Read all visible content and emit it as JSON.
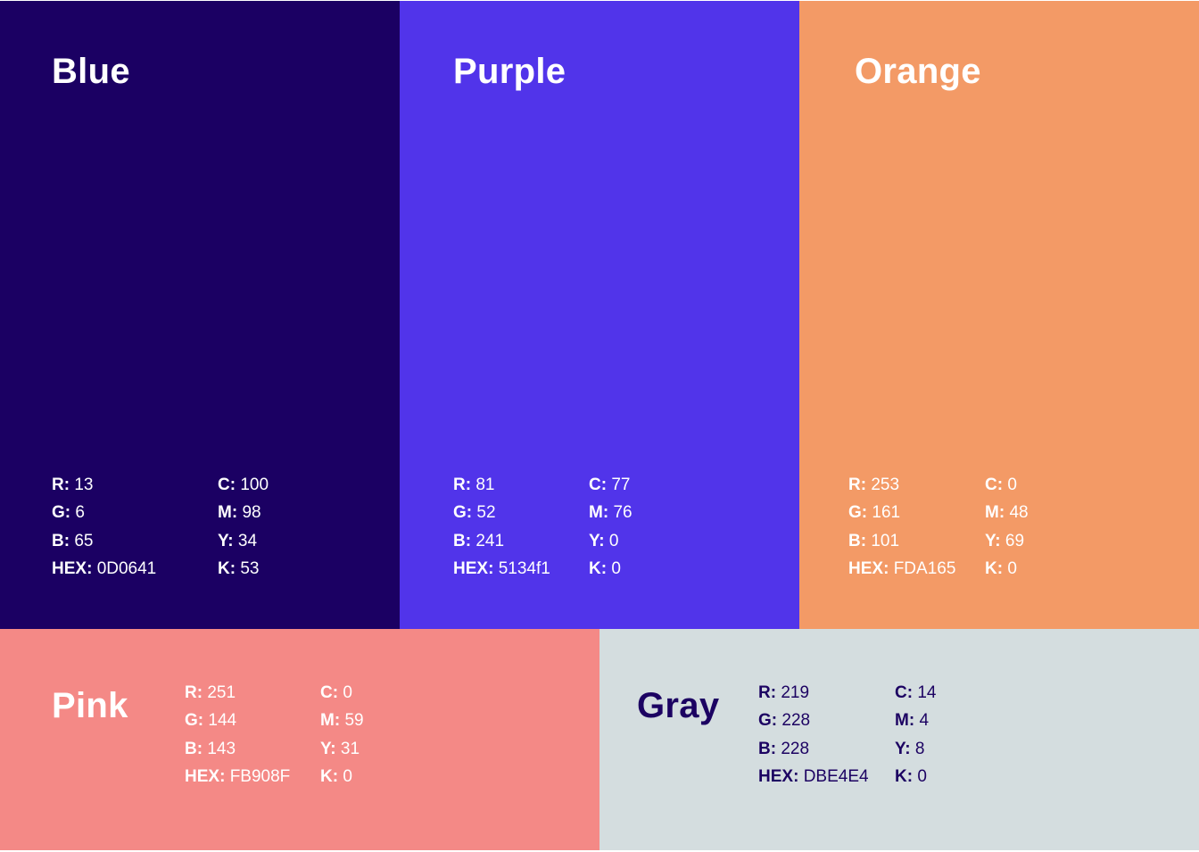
{
  "swatches": [
    {
      "name": "Blue",
      "color": "#1b0063",
      "text_color": "#ffffff",
      "r": "13",
      "g": "6",
      "b": "65",
      "hex": "0D0641",
      "c": "100",
      "m": "98",
      "y": "34",
      "k": "53"
    },
    {
      "name": "Purple",
      "color": "#5134ea",
      "text_color": "#ffffff",
      "r": "81",
      "g": "52",
      "b": "241",
      "hex": "5134f1",
      "c": "77",
      "m": "76",
      "y": "0",
      "k": "0"
    },
    {
      "name": "Orange",
      "color": "#f39a66",
      "text_color": "#ffffff",
      "r": "253",
      "g": "161",
      "b": "101",
      "hex": "FDA165",
      "c": "0",
      "m": "48",
      "y": "69",
      "k": "0"
    },
    {
      "name": "Pink",
      "color": "#f48986",
      "text_color": "#ffffff",
      "r": "251",
      "g": "144",
      "b": "143",
      "hex": "FB908F",
      "c": "0",
      "m": "59",
      "y": "31",
      "k": "0"
    },
    {
      "name": "Gray",
      "color": "#d4dddf",
      "text_color": "#1c0262",
      "r": "219",
      "g": "228",
      "b": "228",
      "hex": "DBE4E4",
      "c": "14",
      "m": "4",
      "y": "8",
      "k": "0"
    }
  ],
  "labels": {
    "r": "R:",
    "g": "G:",
    "b": "B:",
    "hex": "HEX:",
    "c": "C:",
    "m": "M:",
    "y": "Y:",
    "k": "K:"
  }
}
